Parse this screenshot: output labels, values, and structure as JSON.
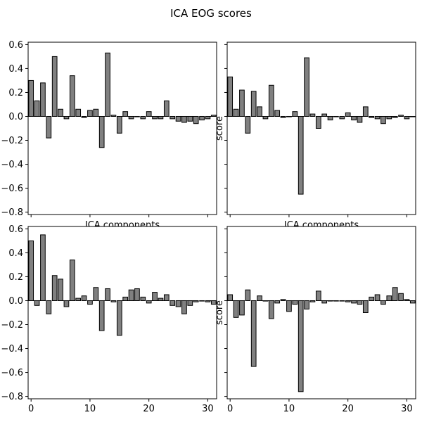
{
  "figure": {
    "title": "ICA EOG scores"
  },
  "chart_data": [
    {
      "type": "bar",
      "xlabel": "ICA components",
      "ylabel": "",
      "xlim": [
        -0.5,
        31.5
      ],
      "ylim": [
        -0.82,
        0.62
      ],
      "x_ticks": [
        0,
        10,
        20,
        30
      ],
      "y_ticks": [
        -0.8,
        -0.6,
        -0.4,
        -0.2,
        0.0,
        0.2,
        0.4,
        0.6
      ],
      "y_tick_labels": [
        "−0.8",
        "−0.6",
        "−0.4",
        "−0.2",
        "0.0",
        "0.2",
        "0.4",
        "0.6"
      ],
      "show_x_tick_labels": false,
      "show_y_tick_labels": true,
      "bar_color": "#808080",
      "edge_color": "#000000",
      "values": [
        0.3,
        0.13,
        0.28,
        -0.18,
        0.5,
        0.06,
        -0.02,
        0.34,
        0.06,
        -0.01,
        0.05,
        0.06,
        -0.26,
        0.53,
        0.01,
        -0.14,
        0.04,
        -0.02,
        0.0,
        -0.02,
        0.04,
        -0.02,
        -0.02,
        0.13,
        -0.02,
        -0.04,
        -0.05,
        -0.04,
        -0.06,
        -0.03,
        -0.02,
        0.01
      ]
    },
    {
      "type": "bar",
      "xlabel": "ICA components",
      "ylabel": "score",
      "xlim": [
        -0.5,
        31.5
      ],
      "ylim": [
        -0.82,
        0.62
      ],
      "x_ticks": [
        0,
        10,
        20,
        30
      ],
      "y_ticks": [
        -0.8,
        -0.6,
        -0.4,
        -0.2,
        0.0,
        0.2,
        0.4,
        0.6
      ],
      "show_x_tick_labels": false,
      "show_y_tick_labels": false,
      "bar_color": "#808080",
      "edge_color": "#000000",
      "values": [
        0.33,
        0.06,
        0.22,
        -0.14,
        0.21,
        0.08,
        -0.02,
        0.26,
        0.05,
        -0.01,
        0.0,
        0.04,
        -0.65,
        0.49,
        0.02,
        -0.1,
        0.02,
        -0.03,
        0.0,
        -0.02,
        0.03,
        -0.03,
        -0.05,
        0.08,
        -0.01,
        -0.02,
        -0.06,
        -0.02,
        -0.01,
        0.01,
        -0.02,
        0.0
      ]
    },
    {
      "type": "bar",
      "xlabel": "",
      "ylabel": "",
      "xlim": [
        -0.5,
        31.5
      ],
      "ylim": [
        -0.82,
        0.62
      ],
      "x_ticks": [
        0,
        10,
        20,
        30
      ],
      "x_tick_labels": [
        "0",
        "10",
        "20",
        "30"
      ],
      "y_ticks": [
        -0.8,
        -0.6,
        -0.4,
        -0.2,
        0.0,
        0.2,
        0.4,
        0.6
      ],
      "y_tick_labels": [
        "−0.8",
        "−0.6",
        "−0.4",
        "−0.2",
        "0.0",
        "0.2",
        "0.4",
        "0.6"
      ],
      "show_x_tick_labels": true,
      "show_y_tick_labels": true,
      "bar_color": "#808080",
      "edge_color": "#000000",
      "values": [
        0.5,
        -0.04,
        0.55,
        -0.11,
        0.21,
        0.18,
        -0.05,
        0.34,
        0.02,
        0.04,
        -0.03,
        0.11,
        -0.25,
        0.1,
        -0.01,
        -0.29,
        0.03,
        0.09,
        0.1,
        0.03,
        -0.02,
        0.07,
        0.02,
        0.05,
        -0.04,
        -0.05,
        -0.11,
        -0.04,
        -0.01,
        0.0,
        -0.01,
        -0.03
      ]
    },
    {
      "type": "bar",
      "xlabel": "",
      "ylabel": "score",
      "xlim": [
        -0.5,
        31.5
      ],
      "ylim": [
        -0.82,
        0.62
      ],
      "x_ticks": [
        0,
        10,
        20,
        30
      ],
      "x_tick_labels": [
        "0",
        "10",
        "20",
        "30"
      ],
      "y_ticks": [
        -0.8,
        -0.6,
        -0.4,
        -0.2,
        0.0,
        0.2,
        0.4,
        0.6
      ],
      "show_x_tick_labels": true,
      "show_y_tick_labels": false,
      "bar_color": "#808080",
      "edge_color": "#000000",
      "values": [
        0.05,
        -0.14,
        -0.12,
        0.09,
        -0.55,
        0.04,
        0.0,
        -0.15,
        -0.02,
        0.01,
        -0.09,
        -0.03,
        -0.76,
        -0.07,
        -0.01,
        0.08,
        -0.02,
        0.0,
        0.0,
        0.0,
        -0.01,
        -0.02,
        -0.03,
        -0.1,
        0.03,
        0.05,
        -0.03,
        0.04,
        0.11,
        0.06,
        0.01,
        -0.02
      ]
    }
  ]
}
